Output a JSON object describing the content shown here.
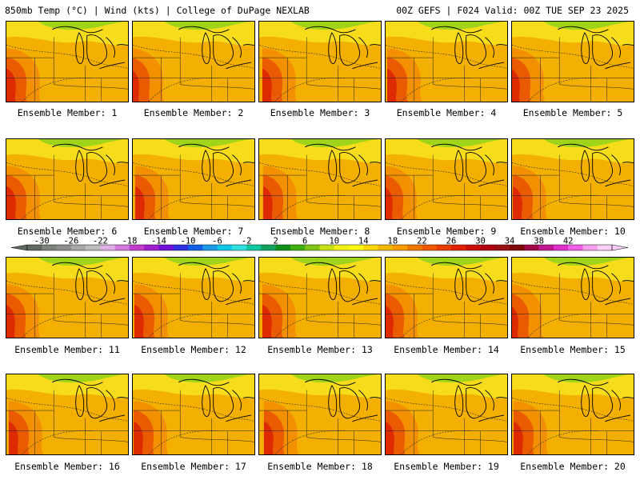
{
  "header": {
    "left": "850mb Temp (°C) | Wind (kts) | College of DuPage NEXLAB",
    "right": "00Z GEFS | F024 Valid: 00Z TUE SEP 23 2025"
  },
  "colorbar": {
    "ticks": [
      "-30",
      "-26",
      "-22",
      "-18",
      "-14",
      "-10",
      "-6",
      "-2",
      "2",
      "6",
      "10",
      "14",
      "18",
      "22",
      "26",
      "30",
      "34",
      "38",
      "42"
    ],
    "colors": [
      "#606a60",
      "#7c847c",
      "#8e8e8e",
      "#a8a8a8",
      "#bcbcbc",
      "#e0aee6",
      "#d27adc",
      "#c43ccc",
      "#a020d0",
      "#7010d8",
      "#3030e0",
      "#1060e8",
      "#1a9ae8",
      "#10c8e8",
      "#30e0e0",
      "#10c8a0",
      "#10a060",
      "#109018",
      "#40b010",
      "#80c818",
      "#c8e018",
      "#f0f018",
      "#fff810",
      "#f8d800",
      "#f0b800",
      "#f89c00",
      "#f07800",
      "#f05800",
      "#e83c00",
      "#e02000",
      "#c81008",
      "#b00010",
      "#981010",
      "#800808",
      "#a00848",
      "#c01890",
      "#e030c8",
      "#f060e8",
      "#f8a0f0",
      "#fcd0f8"
    ]
  },
  "panels": [
    {
      "label": "Ensemble Member: 1"
    },
    {
      "label": "Ensemble Member: 2"
    },
    {
      "label": "Ensemble Member: 3"
    },
    {
      "label": "Ensemble Member: 4"
    },
    {
      "label": "Ensemble Member: 5"
    },
    {
      "label": "Ensemble Member: 6"
    },
    {
      "label": "Ensemble Member: 7"
    },
    {
      "label": "Ensemble Member: 8"
    },
    {
      "label": "Ensemble Member: 9"
    },
    {
      "label": "Ensemble Member: 10"
    },
    {
      "label": "Ensemble Member: 11"
    },
    {
      "label": "Ensemble Member: 12"
    },
    {
      "label": "Ensemble Member: 13"
    },
    {
      "label": "Ensemble Member: 14"
    },
    {
      "label": "Ensemble Member: 15"
    },
    {
      "label": "Ensemble Member: 16"
    },
    {
      "label": "Ensemble Member: 17"
    },
    {
      "label": "Ensemble Member: 18"
    },
    {
      "label": "Ensemble Member: 19"
    },
    {
      "label": "Ensemble Member: 20"
    }
  ]
}
